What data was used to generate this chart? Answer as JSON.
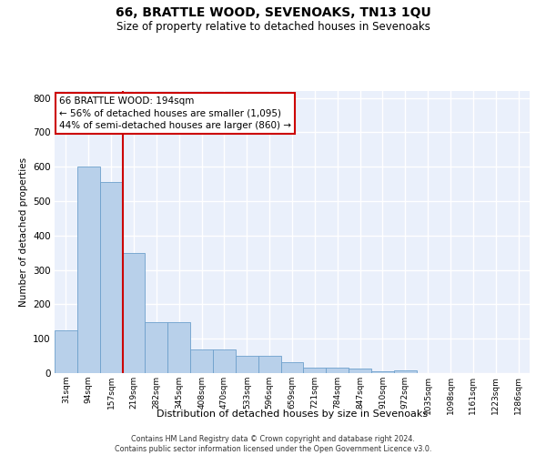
{
  "title": "66, BRATTLE WOOD, SEVENOAKS, TN13 1QU",
  "subtitle": "Size of property relative to detached houses in Sevenoaks",
  "xlabel": "Distribution of detached houses by size in Sevenoaks",
  "ylabel": "Number of detached properties",
  "categories": [
    "31sqm",
    "94sqm",
    "157sqm",
    "219sqm",
    "282sqm",
    "345sqm",
    "408sqm",
    "470sqm",
    "533sqm",
    "596sqm",
    "659sqm",
    "721sqm",
    "784sqm",
    "847sqm",
    "910sqm",
    "972sqm",
    "1035sqm",
    "1098sqm",
    "1161sqm",
    "1223sqm",
    "1286sqm"
  ],
  "values": [
    125,
    600,
    555,
    350,
    147,
    147,
    70,
    70,
    50,
    50,
    33,
    15,
    15,
    12,
    5,
    8,
    0,
    0,
    0,
    0,
    0
  ],
  "bar_color": "#b8d0ea",
  "bar_edge_color": "#6da0cc",
  "vline_x_index": 2.5,
  "vline_color": "#cc0000",
  "annotation_line1": "66 BRATTLE WOOD: 194sqm",
  "annotation_line2": "← 56% of detached houses are smaller (1,095)",
  "annotation_line3": "44% of semi-detached houses are larger (860) →",
  "annotation_box_color": "#cc0000",
  "ylim": [
    0,
    820
  ],
  "yticks": [
    0,
    100,
    200,
    300,
    400,
    500,
    600,
    700,
    800
  ],
  "background_color": "#eaf0fb",
  "grid_color": "#ffffff",
  "footer_line1": "Contains HM Land Registry data © Crown copyright and database right 2024.",
  "footer_line2": "Contains public sector information licensed under the Open Government Licence v3.0."
}
